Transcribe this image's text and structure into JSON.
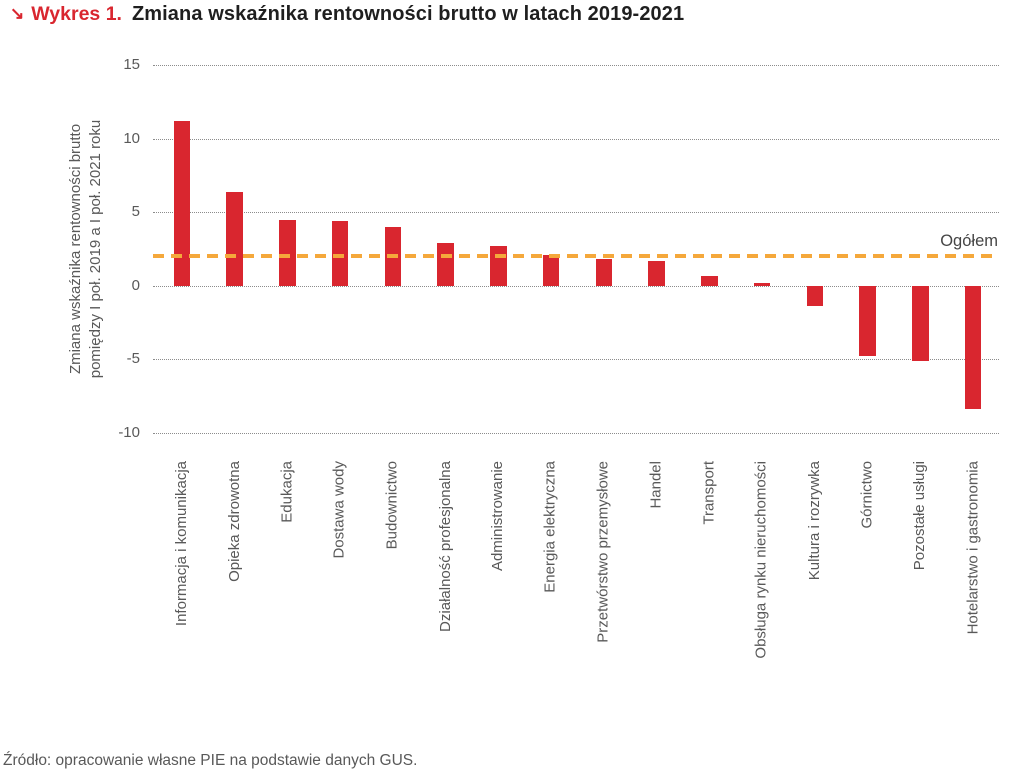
{
  "header": {
    "arrow_icon": "↘",
    "kicker": "Wykres 1.",
    "title": "Zmiana wskaźnika rentowności brutto w latach 2019-2021"
  },
  "chart_data": {
    "type": "bar",
    "title": "Zmiana wskaźnika rentowności brutto w latach 2019-2021",
    "ylabel": [
      "Zmiana wskaźnika rentowności brutto",
      "pomiędzy I poł. 2019 a I poł. 2021 roku"
    ],
    "xlabel": "",
    "ylim": [
      -10,
      15
    ],
    "yticks": [
      15,
      10,
      5,
      0,
      -5,
      -10
    ],
    "grid": "horizontal-dotted",
    "legend": "none",
    "categories": [
      "Informacja i komunikacja",
      "Opieka zdrowotna",
      "Edukacja",
      "Dostawa wody",
      "Budownictwo",
      "Działalność profesjonalna",
      "Administrowanie",
      "Energia elektryczna",
      "Przetwórstwo przemysłowe",
      "Handel",
      "Transport",
      "Obsługa rynku nieruchomości",
      "Kultura i rozrywka",
      "Górnictwo",
      "Pozostałe usługi",
      "Hotelarstwo i gastronomia"
    ],
    "values": [
      11.2,
      6.4,
      4.5,
      4.4,
      4.0,
      2.9,
      2.7,
      2.1,
      1.8,
      1.7,
      0.7,
      0.2,
      -1.4,
      -4.8,
      -5.1,
      -8.4
    ],
    "reference_line": {
      "label": "Ogółem",
      "value": 2.0
    }
  },
  "colors": {
    "bar": "#D9262F",
    "accent_red": "#D9262F",
    "reference_line": "#F5A83B",
    "grid": "#8C8C8C",
    "axis_text": "#595959",
    "title_text": "#1F1F1F"
  },
  "footer": {
    "source": "Źródło: opracowanie własne PIE na podstawie danych GUS."
  }
}
